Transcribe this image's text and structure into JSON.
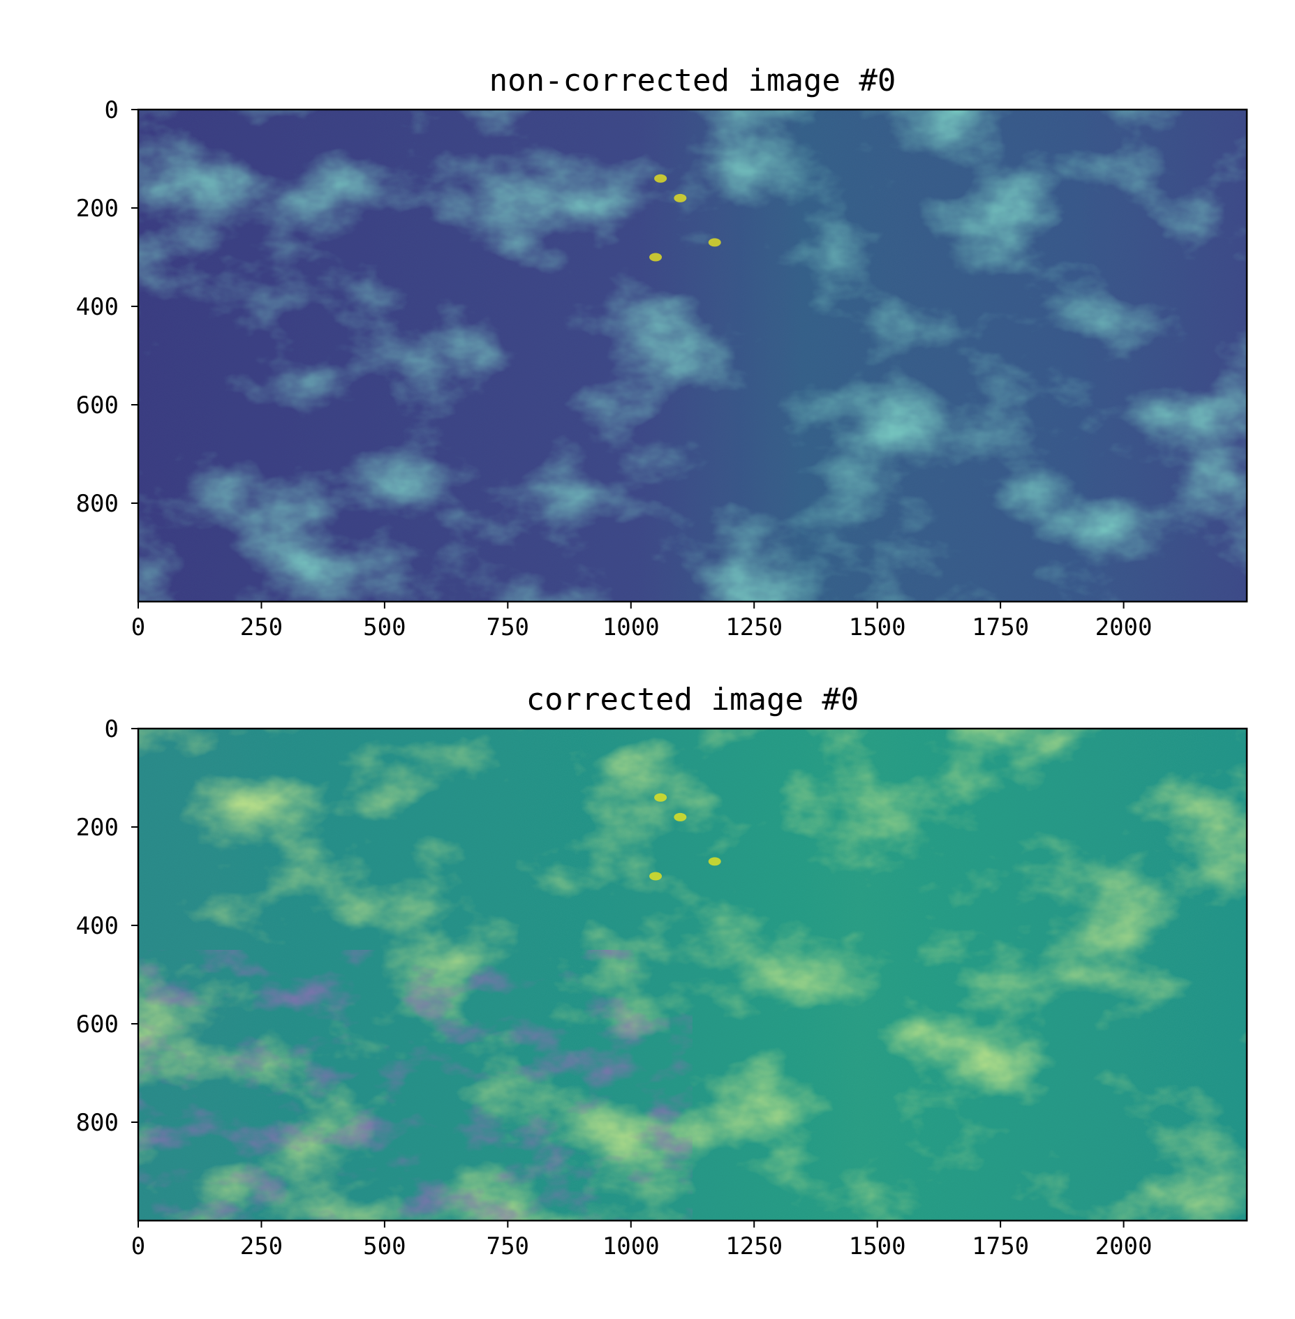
{
  "chart_data": [
    {
      "type": "heatmap",
      "title": "non-corrected image #0",
      "xlabel": "",
      "ylabel": "",
      "xlim": [
        0,
        2250
      ],
      "ylim": [
        1000,
        0
      ],
      "x_ticks": [
        0,
        250,
        500,
        750,
        1000,
        1250,
        1500,
        1750,
        2000
      ],
      "y_ticks": [
        0,
        200,
        400,
        600,
        800
      ],
      "colormap": "viridis",
      "grid": false,
      "description_colors": {
        "background": "#3b4f8c",
        "bright": "#f2e51d",
        "mid": "#2a8a8a"
      }
    },
    {
      "type": "heatmap",
      "title": "corrected image #0",
      "xlabel": "",
      "ylabel": "",
      "xlim": [
        0,
        2250
      ],
      "ylim": [
        1000,
        0
      ],
      "x_ticks": [
        0,
        250,
        500,
        750,
        1000,
        1250,
        1500,
        1750,
        2000
      ],
      "y_ticks": [
        0,
        200,
        400,
        600,
        800
      ],
      "colormap": "viridis",
      "grid": false,
      "description_colors": {
        "background": "#24938a",
        "bright": "#cde22a",
        "dark": "#3f2f74"
      }
    }
  ]
}
